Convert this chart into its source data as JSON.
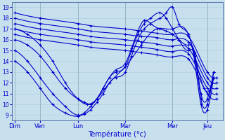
{
  "xlabel": "Température (°c)",
  "bg_color": "#c8e0ee",
  "grid_color": "#b0cfe0",
  "line_color": "#0000cc",
  "marker": "+",
  "ylim": [
    8.5,
    19.5
  ],
  "yticks": [
    9,
    10,
    11,
    12,
    13,
    14,
    15,
    16,
    17,
    18,
    19
  ],
  "day_labels": [
    "Dim",
    "Ven",
    "Lun",
    "Mar",
    "Mer",
    "Jeu"
  ],
  "day_x": [
    0.0,
    0.8,
    2.0,
    3.5,
    5.0,
    6.1
  ],
  "series": [
    {
      "x": [
        0.0,
        0.8,
        2.0,
        2.4,
        3.5,
        4.0,
        4.5,
        5.0,
        5.5,
        6.1,
        6.4
      ],
      "y": [
        18.5,
        18.0,
        17.5,
        17.3,
        17.0,
        16.8,
        16.6,
        16.5,
        16.3,
        13.0,
        12.5
      ]
    },
    {
      "x": [
        0.0,
        0.8,
        2.0,
        2.4,
        3.5,
        4.0,
        4.5,
        5.0,
        5.5,
        6.1,
        6.4
      ],
      "y": [
        18.0,
        17.5,
        17.0,
        16.8,
        16.5,
        16.3,
        16.2,
        16.0,
        15.8,
        12.5,
        12.0
      ]
    },
    {
      "x": [
        0.0,
        0.8,
        2.0,
        2.4,
        3.5,
        4.0,
        4.5,
        5.0,
        5.5,
        6.1,
        6.4
      ],
      "y": [
        17.5,
        17.0,
        16.5,
        16.3,
        16.0,
        15.8,
        15.6,
        15.4,
        15.2,
        12.0,
        11.5
      ]
    },
    {
      "x": [
        0.0,
        0.8,
        2.0,
        2.4,
        3.5,
        4.0,
        4.5,
        5.0,
        5.5,
        6.1,
        6.4
      ],
      "y": [
        17.0,
        16.5,
        16.0,
        15.8,
        15.5,
        15.3,
        15.1,
        14.9,
        14.7,
        11.5,
        11.0
      ]
    },
    {
      "x": [
        0.0,
        0.8,
        2.0,
        2.4,
        3.5,
        4.0,
        4.5,
        5.0,
        5.5,
        6.1,
        6.4
      ],
      "y": [
        16.5,
        16.0,
        15.5,
        15.3,
        15.0,
        14.8,
        14.6,
        14.4,
        14.2,
        11.0,
        10.5
      ]
    },
    {
      "x": [
        0.0,
        0.4,
        0.8,
        1.2,
        1.6,
        2.0,
        2.2,
        2.4,
        2.6,
        2.8,
        3.0,
        3.2,
        3.5,
        3.7,
        3.9,
        4.1,
        4.3,
        4.6,
        4.8,
        5.0,
        5.2,
        5.5,
        5.7,
        5.9,
        6.1,
        6.3
      ],
      "y": [
        15.0,
        14.0,
        12.5,
        11.0,
        9.8,
        9.0,
        9.2,
        9.8,
        10.5,
        11.5,
        12.5,
        13.0,
        13.5,
        15.0,
        16.5,
        17.5,
        18.0,
        18.5,
        18.0,
        17.0,
        16.0,
        15.0,
        14.5,
        10.5,
        10.0,
        13.0
      ]
    },
    {
      "x": [
        0.0,
        0.4,
        0.8,
        1.2,
        1.6,
        2.0,
        2.2,
        2.4,
        2.6,
        2.8,
        3.0,
        3.2,
        3.5,
        3.7,
        3.9,
        4.1,
        4.3,
        4.6,
        4.8,
        5.0,
        5.2,
        5.5,
        5.7,
        5.9,
        6.1,
        6.3
      ],
      "y": [
        14.0,
        13.0,
        11.5,
        10.0,
        9.2,
        8.9,
        9.1,
        9.5,
        10.2,
        11.0,
        12.0,
        12.5,
        13.0,
        14.5,
        16.0,
        17.0,
        17.5,
        18.0,
        18.5,
        19.0,
        17.5,
        16.5,
        14.0,
        10.0,
        9.5,
        12.5
      ]
    },
    {
      "x": [
        0.0,
        0.4,
        0.8,
        1.2,
        1.6,
        2.0,
        2.2,
        2.4,
        2.6,
        2.8,
        3.0,
        3.2,
        3.5,
        3.7,
        3.9,
        4.1,
        4.3,
        4.6,
        4.8,
        5.0,
        5.2,
        5.5,
        5.7,
        5.9,
        6.1,
        6.3
      ],
      "y": [
        16.0,
        15.5,
        14.5,
        13.0,
        11.5,
        10.5,
        10.2,
        10.0,
        10.5,
        11.5,
        12.5,
        13.2,
        13.8,
        15.2,
        16.8,
        17.8,
        17.5,
        17.0,
        16.8,
        16.5,
        16.0,
        15.5,
        14.8,
        11.0,
        10.5,
        13.0
      ]
    },
    {
      "x": [
        0.0,
        0.4,
        0.8,
        1.2,
        1.6,
        2.0,
        2.3,
        2.6,
        3.0,
        3.5,
        4.0,
        4.5,
        5.0,
        5.5,
        6.0,
        6.3
      ],
      "y": [
        17.0,
        16.5,
        15.5,
        14.0,
        12.0,
        10.5,
        10.0,
        10.5,
        12.0,
        13.5,
        15.5,
        17.0,
        17.0,
        16.5,
        11.5,
        12.5
      ]
    }
  ]
}
